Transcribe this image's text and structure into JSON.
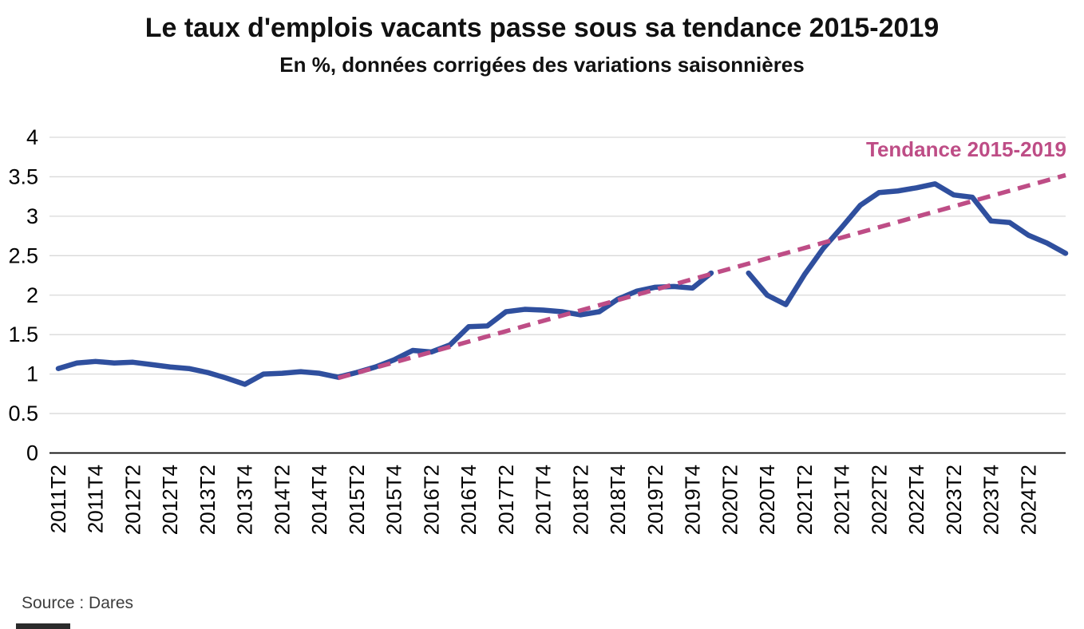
{
  "header": {
    "title": "Le taux d'emplois vacants passe sous sa tendance 2015-2019",
    "subtitle": "En %, données corrigées des variations saisonnières"
  },
  "footer": {
    "source": "Source : Dares"
  },
  "chart_data": {
    "type": "line",
    "unit": "%",
    "title": "Le taux d'emplois vacants passe sous sa tendance 2015-2019",
    "subtitle": "En %, données corrigées des variations saisonnières",
    "grid": "horizontal",
    "ylim": [
      0,
      4
    ],
    "yticks": [
      0,
      0.5,
      1,
      1.5,
      2,
      2.5,
      3,
      3.5,
      4
    ],
    "x": [
      "2011T2",
      "2011T3",
      "2011T4",
      "2012T1",
      "2012T2",
      "2012T3",
      "2012T4",
      "2013T1",
      "2013T2",
      "2013T3",
      "2013T4",
      "2014T1",
      "2014T2",
      "2014T3",
      "2014T4",
      "2015T1",
      "2015T2",
      "2015T3",
      "2015T4",
      "2016T1",
      "2016T2",
      "2016T3",
      "2016T4",
      "2017T1",
      "2017T2",
      "2017T3",
      "2017T4",
      "2018T1",
      "2018T2",
      "2018T3",
      "2018T4",
      "2019T1",
      "2019T2",
      "2019T3",
      "2019T4",
      "2020T1",
      "2020T2",
      "2020T3",
      "2020T4",
      "2021T1",
      "2021T2",
      "2021T3",
      "2021T4",
      "2022T1",
      "2022T2",
      "2022T3",
      "2022T4",
      "2023T1",
      "2023T2",
      "2023T3",
      "2023T4",
      "2024T1",
      "2024T2",
      "2024T3",
      "2024T4"
    ],
    "xtick_labels": [
      "2011T2",
      "2011T4",
      "2012T2",
      "2012T4",
      "2013T2",
      "2013T4",
      "2014T2",
      "2014T4",
      "2015T2",
      "2015T4",
      "2016T2",
      "2016T4",
      "2017T2",
      "2017T4",
      "2018T2",
      "2018T4",
      "2019T2",
      "2019T4",
      "2020T2",
      "2020T4",
      "2021T2",
      "2021T4",
      "2022T2",
      "2022T4",
      "2023T2",
      "2023T4",
      "2024T2"
    ],
    "gap_quarters": [
      "2020T2"
    ],
    "series": [
      {
        "name": "Taux d'emplois vacants",
        "color": "#2F4F9E",
        "values": [
          1.07,
          1.14,
          1.16,
          1.14,
          1.15,
          1.12,
          1.09,
          1.07,
          1.02,
          0.95,
          0.87,
          1.0,
          1.01,
          1.03,
          1.01,
          0.96,
          1.02,
          1.09,
          1.18,
          1.3,
          1.28,
          1.37,
          1.6,
          1.61,
          1.79,
          1.82,
          1.81,
          1.79,
          1.75,
          1.79,
          1.95,
          2.05,
          2.1,
          2.11,
          2.09,
          2.28,
          null,
          2.28,
          2.0,
          1.88,
          2.26,
          2.59,
          2.86,
          3.14,
          3.3,
          3.32,
          3.36,
          3.41,
          3.27,
          3.24,
          2.94,
          2.92,
          2.76,
          2.66,
          2.53
        ]
      }
    ],
    "trend": {
      "label": "Tendance 2015-2019",
      "color": "#BE4D86",
      "style": "dashed",
      "start": {
        "x": "2015T1",
        "value": 0.95
      },
      "end": {
        "x": "2024T4",
        "value": 3.52
      }
    }
  }
}
